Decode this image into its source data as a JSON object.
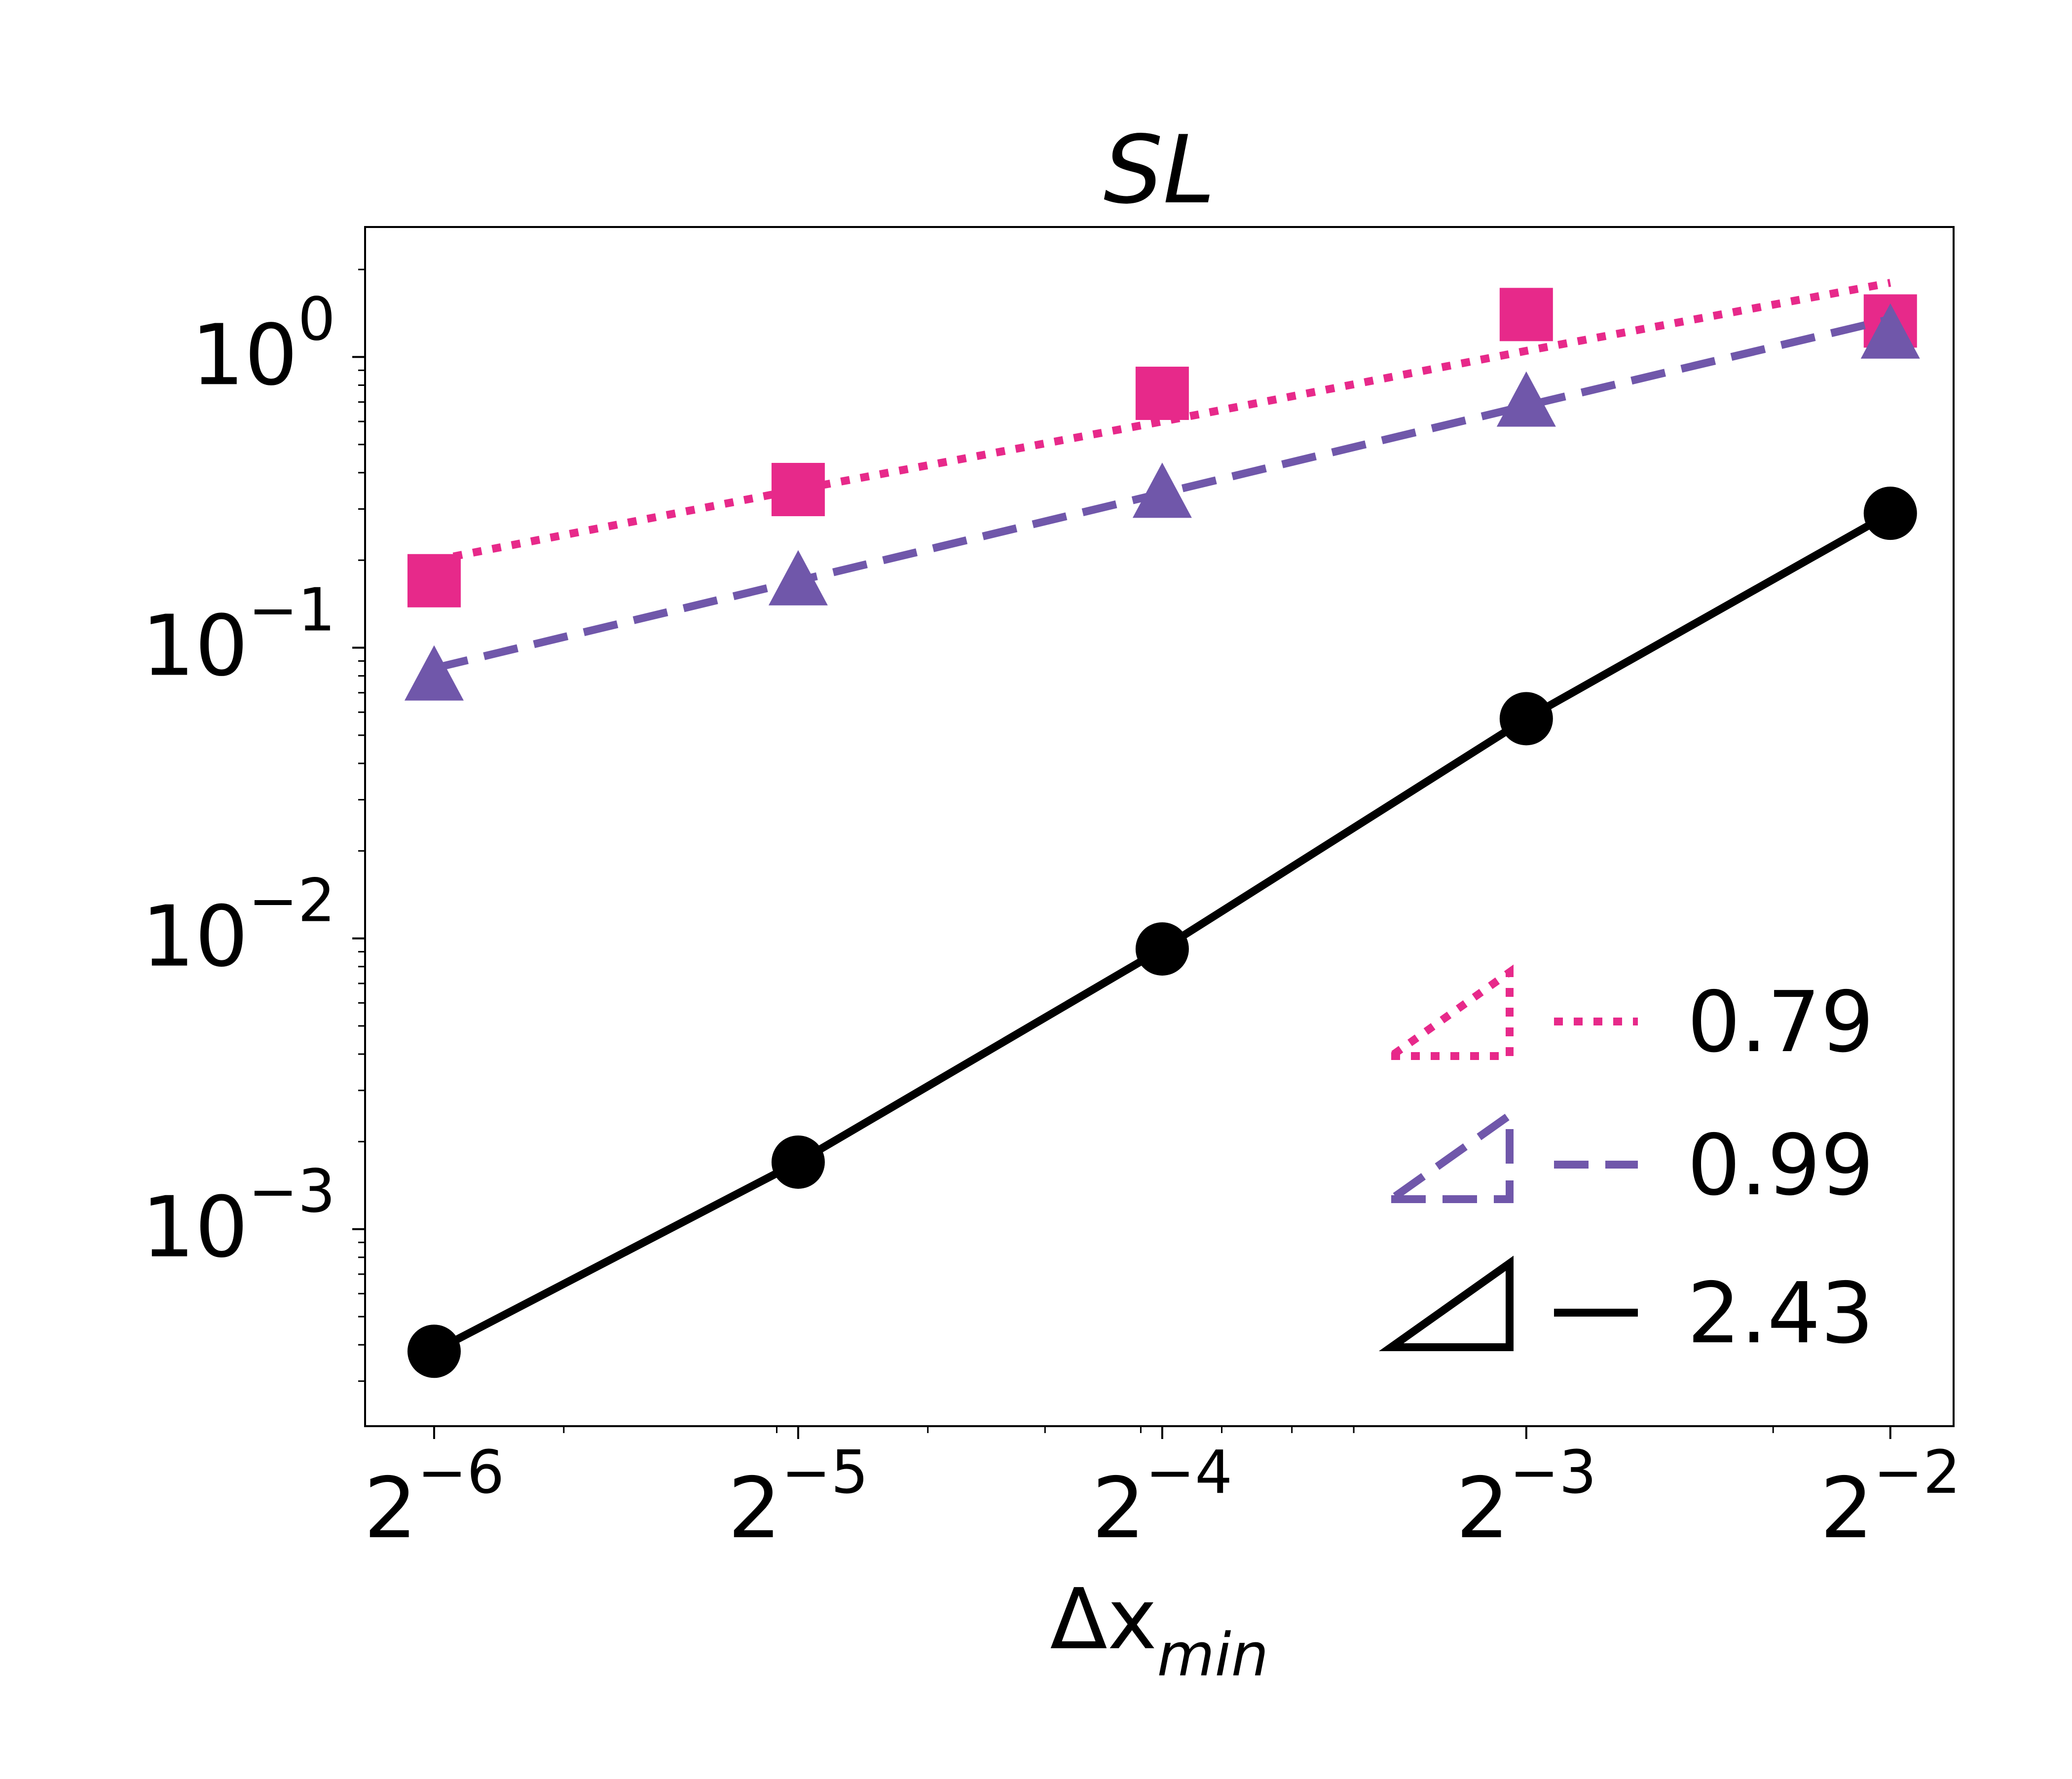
{
  "chart_data": {
    "type": "line",
    "title": "SL",
    "xlabel": {
      "base": "Δx",
      "subscript": "min"
    },
    "ylabel": "",
    "x_scale": "log2",
    "y_scale": "log10",
    "x": [
      0.015625,
      0.03125,
      0.0625,
      0.125,
      0.25
    ],
    "x_tick_labels": [
      {
        "base": "2",
        "exp": "−6"
      },
      {
        "base": "2",
        "exp": "−5"
      },
      {
        "base": "2",
        "exp": "−4"
      },
      {
        "base": "2",
        "exp": "−3"
      },
      {
        "base": "2",
        "exp": "−2"
      }
    ],
    "y_ticks": [
      {
        "value": 1,
        "base": "10",
        "exp": "0"
      },
      {
        "value": 0.1,
        "base": "10",
        "exp": "−1"
      },
      {
        "value": 0.01,
        "base": "10",
        "exp": "−2"
      },
      {
        "value": 0.001,
        "base": "10",
        "exp": "−3"
      }
    ],
    "xlim": [
      0.0137,
      0.282
    ],
    "ylim": [
      0.00021,
      2.8
    ],
    "series": [
      {
        "name": "squares",
        "marker": "square",
        "line_style": "dotted",
        "color": "#e7298a",
        "values": [
          0.17,
          0.35,
          0.75,
          1.4,
          1.33
        ],
        "fit_values": [
          0.2,
          0.35,
          0.6,
          1.05,
          1.8
        ],
        "slope_label": "0.79"
      },
      {
        "name": "triangles",
        "marker": "triangle",
        "line_style": "dashed",
        "color": "#7057aa",
        "values": [
          0.08,
          0.17,
          0.34,
          0.7,
          1.2
        ],
        "fit_values": [
          0.085,
          0.17,
          0.34,
          0.68,
          1.35
        ],
        "slope_label": "0.99"
      },
      {
        "name": "circles",
        "marker": "circle",
        "line_style": "solid",
        "color": "#000000",
        "values": [
          0.00038,
          0.0017,
          0.0092,
          0.057,
          0.29
        ],
        "fit_values": [
          0.00038,
          0.0017,
          0.0092,
          0.057,
          0.29
        ],
        "slope_label": "2.43"
      }
    ],
    "legend": {
      "placement": "lower-right"
    }
  }
}
